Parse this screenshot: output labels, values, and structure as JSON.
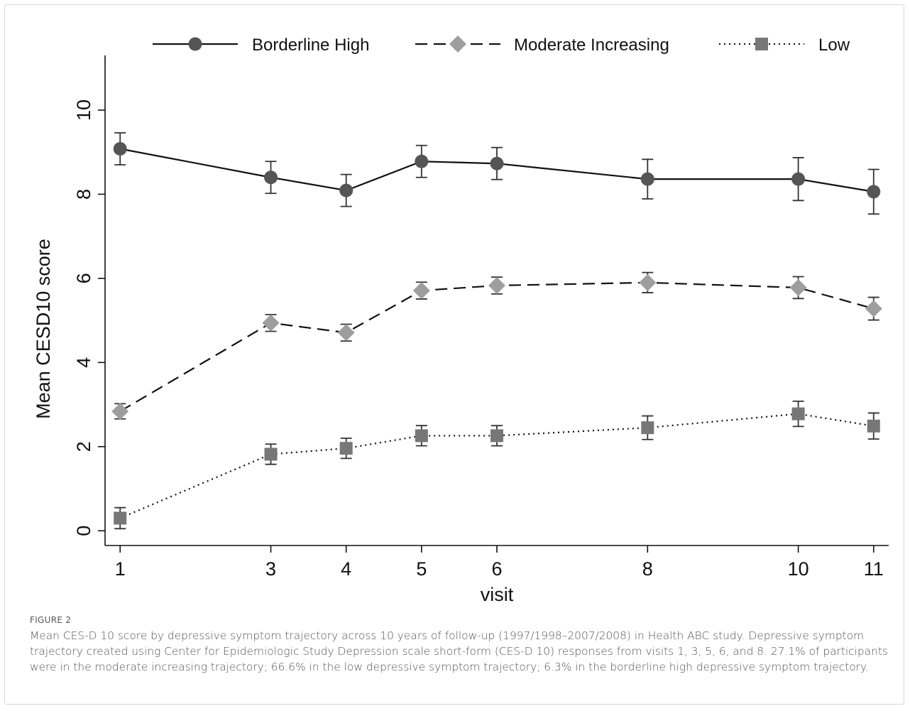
{
  "chart_data": {
    "type": "line",
    "xlabel": "visit",
    "ylabel": "Mean CESD10 score",
    "x": [
      1,
      3,
      4,
      5,
      6,
      8,
      10,
      11
    ],
    "xticks": [
      "1",
      "3",
      "4",
      "5",
      "6",
      "8",
      "10",
      "11"
    ],
    "yticks": [
      "0",
      "2",
      "4",
      "6",
      "8",
      "10"
    ],
    "xlim": [
      0.8,
      11.2
    ],
    "ylim": [
      -0.35,
      11.3
    ],
    "grid": false,
    "legend_position": "top",
    "series": [
      {
        "name": "Borderline High",
        "marker": "circle",
        "line_style": "solid",
        "color": "#555555",
        "values": [
          9.08,
          8.4,
          8.09,
          8.78,
          8.73,
          8.36,
          8.36,
          8.06
        ],
        "error_low": [
          8.7,
          8.02,
          7.71,
          8.4,
          8.35,
          7.89,
          7.85,
          7.53
        ],
        "error_high": [
          9.46,
          8.78,
          8.47,
          9.16,
          9.11,
          8.83,
          8.87,
          8.59
        ]
      },
      {
        "name": "Moderate Increasing",
        "marker": "diamond",
        "line_style": "dashed",
        "color": "#9e9e9e",
        "values": [
          2.84,
          4.94,
          4.71,
          5.71,
          5.83,
          5.9,
          5.78,
          5.28
        ],
        "error_low": [
          2.66,
          4.74,
          4.51,
          5.51,
          5.63,
          5.66,
          5.52,
          5.01
        ],
        "error_high": [
          3.02,
          5.14,
          4.91,
          5.91,
          6.03,
          6.14,
          6.04,
          5.55
        ]
      },
      {
        "name": "Low",
        "marker": "square",
        "line_style": "dotted",
        "color": "#777777",
        "values": [
          0.3,
          1.82,
          1.96,
          2.26,
          2.26,
          2.45,
          2.78,
          2.49
        ],
        "error_low": [
          0.05,
          1.58,
          1.72,
          2.02,
          2.02,
          2.17,
          2.48,
          2.18
        ],
        "error_high": [
          0.55,
          2.06,
          2.2,
          2.5,
          2.5,
          2.73,
          3.08,
          2.8
        ]
      }
    ]
  },
  "caption": {
    "label": "FIGURE 2",
    "text": "Mean CES-D 10 score by depressive symptom trajectory across 10 years of follow-up (1997/1998–2007/2008) in Health ABC study. Depressive symptom trajectory created using Center for Epidemiologic Study Depression scale short-form (CES-D 10) responses from visits 1, 3, 5, 6, and 8. 27.1% of participants were in the moderate increasing trajectory; 66.6% in the low depressive symptom trajectory; 6.3% in the borderline high depressive symptom trajectory."
  },
  "colors": {
    "axis": "#111111",
    "line": "#111111",
    "caption_text": "#555555"
  }
}
